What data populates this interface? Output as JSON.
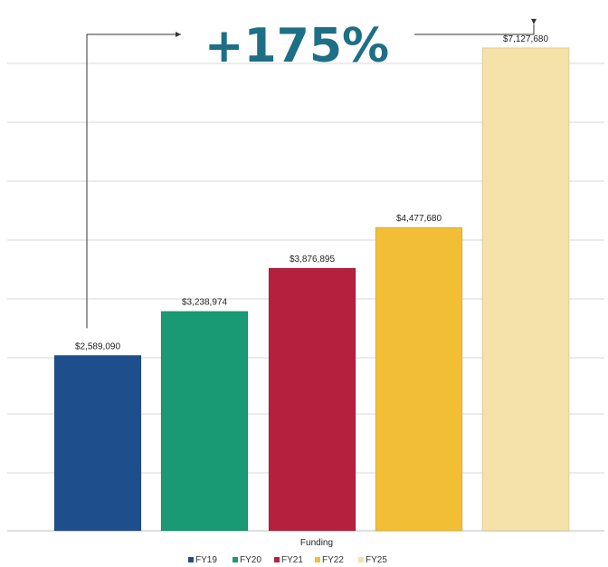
{
  "headline": "+175%",
  "colors": {
    "headline": "#1d6f86",
    "arrow": "#333333",
    "grid": "#d9d9d9",
    "axis": "#bfbfbf"
  },
  "chart_data": {
    "type": "bar",
    "categories": [
      "Funding"
    ],
    "xlabel": "Funding",
    "ylabel": "",
    "title": "",
    "ylim": [
      0,
      7700000
    ],
    "grid": true,
    "legend_position": "bottom",
    "series": [
      {
        "name": "FY19",
        "values": [
          2589090
        ],
        "label": "$2,589,090",
        "color": "#1f4e8c"
      },
      {
        "name": "FY20",
        "values": [
          3238974
        ],
        "label": "$3,238,974",
        "color": "#1a9a74"
      },
      {
        "name": "FY21",
        "values": [
          3876895
        ],
        "label": "$3,876,895",
        "color": "#b5203e"
      },
      {
        "name": "FY22",
        "values": [
          4477680
        ],
        "label": "$4,477,680",
        "color": "#f2be35"
      },
      {
        "name": "FY25",
        "values": [
          7127680
        ],
        "label": "$7,127,680",
        "color": "#f4e2a8"
      }
    ]
  }
}
